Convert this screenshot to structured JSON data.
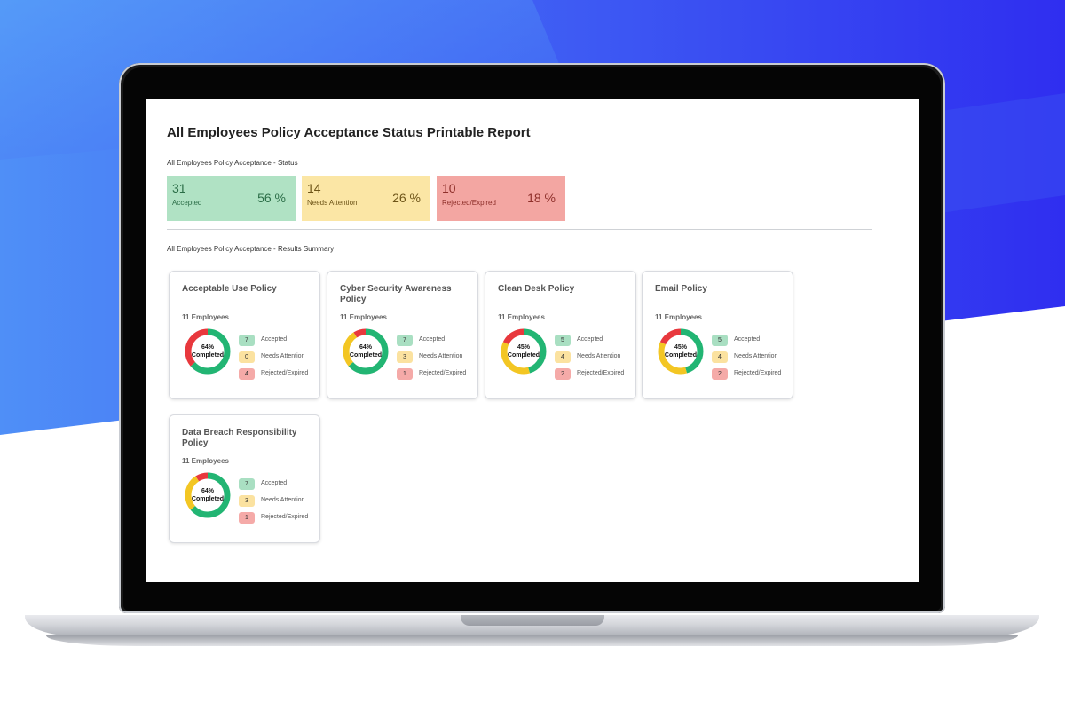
{
  "report": {
    "title": "All Employees Policy Acceptance Status Printable Report",
    "status_section_label": "All Employees Policy Acceptance - Status",
    "summary_section_label": "All Employees Policy Acceptance - Results Summary"
  },
  "status": [
    {
      "count": "31",
      "label": "Accepted",
      "percent": "56 %"
    },
    {
      "count": "14",
      "label": "Needs Attention",
      "percent": "26 %"
    },
    {
      "count": "10",
      "label": "Rejected/Expired",
      "percent": "18 %"
    }
  ],
  "legend_labels": {
    "accepted": "Accepted",
    "needs_attention": "Needs Attention",
    "rejected": "Rejected/Expired"
  },
  "colors": {
    "accepted": "#22b573",
    "needs_attention": "#f3c623",
    "rejected": "#e8383d"
  },
  "policies": [
    {
      "title": "Acceptable Use Policy",
      "employees": "11 Employees",
      "percent": "64%",
      "completed": "Completed",
      "accepted": "7",
      "needs_attention": "0",
      "rejected": "4"
    },
    {
      "title": "Cyber Security Awareness Policy",
      "employees": "11 Employees",
      "percent": "64%",
      "completed": "Completed",
      "accepted": "7",
      "needs_attention": "3",
      "rejected": "1"
    },
    {
      "title": "Clean Desk Policy",
      "employees": "11 Employees",
      "percent": "45%",
      "completed": "Completed",
      "accepted": "5",
      "needs_attention": "4",
      "rejected": "2"
    },
    {
      "title": "Email Policy",
      "employees": "11 Employees",
      "percent": "45%",
      "completed": "Completed",
      "accepted": "5",
      "needs_attention": "4",
      "rejected": "2"
    },
    {
      "title": "Data Breach Responsibility Policy",
      "employees": "11 Employees",
      "percent": "64%",
      "completed": "Completed",
      "accepted": "7",
      "needs_attention": "3",
      "rejected": "1"
    }
  ]
}
